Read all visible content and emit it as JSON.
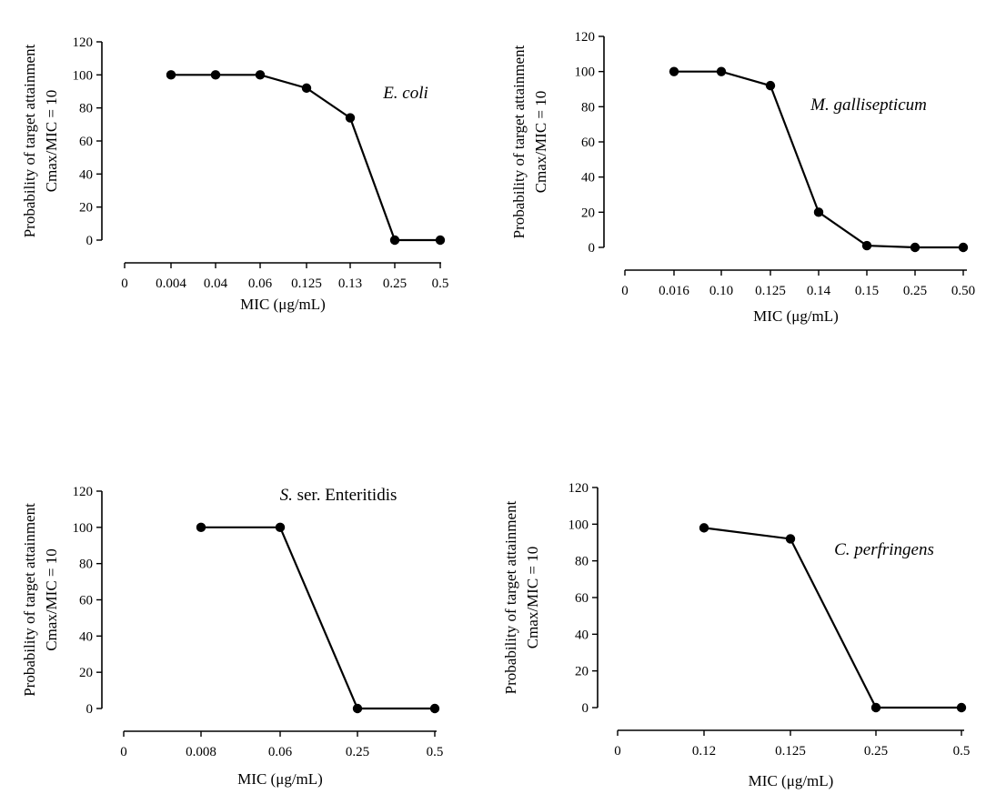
{
  "chart_data": [
    {
      "type": "line",
      "organism": "E. coli",
      "categories": [
        "0",
        "0.004",
        "0.04",
        "0.06",
        "0.125",
        "0.13",
        "0.25",
        "0.5"
      ],
      "values": [
        null,
        100,
        100,
        100,
        92,
        74,
        0,
        0
      ],
      "xlabel": "MIC (μg/mL)",
      "ylabel_line1": "Probability of target attainment",
      "ylabel_line2": "Cmax/MIC = 10",
      "ylim": [
        0,
        120
      ],
      "yticks": [
        0,
        20,
        40,
        60,
        80,
        100,
        120
      ],
      "annotation": {
        "italic": "E. coli",
        "plain": ""
      },
      "grid": false,
      "legend": "none"
    },
    {
      "type": "line",
      "organism": "M. gallisepticum",
      "categories": [
        "0",
        "0.016",
        "0.10",
        "0.125",
        "0.14",
        "0.15",
        "0.25",
        "0.50"
      ],
      "values": [
        null,
        100,
        100,
        92,
        20,
        1,
        0,
        0
      ],
      "xlabel": "MIC (μg/mL)",
      "ylabel_line1": "Probability of target attainment",
      "ylabel_line2": "Cmax/MIC = 10",
      "ylim": [
        0,
        120
      ],
      "yticks": [
        0,
        20,
        40,
        60,
        80,
        100,
        120
      ],
      "annotation": {
        "italic": "M. gallisepticum",
        "plain": ""
      },
      "grid": false,
      "legend": "none"
    },
    {
      "type": "line",
      "organism": "S. ser. Enteritidis",
      "categories": [
        "0",
        "0.008",
        "0.06",
        "0.25",
        "0.5"
      ],
      "values": [
        null,
        100,
        100,
        0,
        0
      ],
      "xlabel": "MIC (μg/mL)",
      "ylabel_line1": "Probability of target attainment",
      "ylabel_line2": "Cmax/MIC = 10",
      "ylim": [
        0,
        120
      ],
      "yticks": [
        0,
        20,
        40,
        60,
        80,
        100,
        120
      ],
      "annotation": {
        "italic": "S.",
        "plain": " ser. Enteritidis"
      },
      "grid": false,
      "legend": "none"
    },
    {
      "type": "line",
      "organism": "C. perfringens",
      "categories": [
        "0",
        "0.12",
        "0.125",
        "0.25",
        "0.5"
      ],
      "values": [
        null,
        98,
        92,
        0,
        0
      ],
      "xlabel": "MIC (μg/mL)",
      "ylabel_line1": "Probability of target attainment",
      "ylabel_line2": "Cmax/MIC = 10",
      "ylim": [
        0,
        120
      ],
      "yticks": [
        0,
        20,
        40,
        60,
        80,
        100,
        120
      ],
      "annotation": {
        "italic": "C. perfringens",
        "plain": ""
      },
      "grid": false,
      "legend": "none"
    }
  ]
}
